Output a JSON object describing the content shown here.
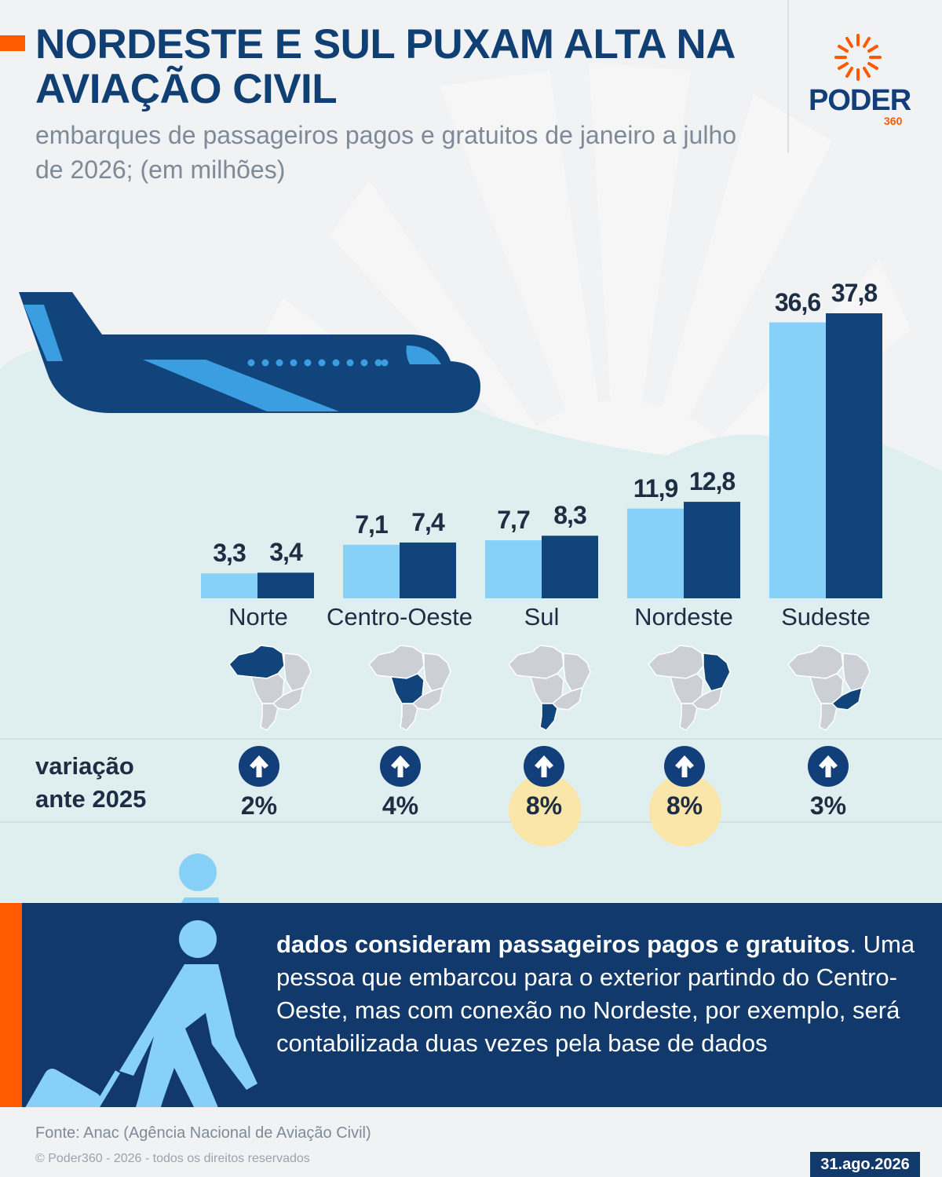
{
  "header": {
    "title": "NORDESTE E SUL PUXAM ALTA NA AVIAÇÃO CIVIL",
    "subtitle": "embarques  de passageiros pagos e gratuitos de janeiro a julho de 2026;  (em milhões)"
  },
  "brand": {
    "name": "PODER",
    "number": "360"
  },
  "colors": {
    "light_bar": "#87d1f8",
    "dark_bar": "#12447c",
    "accent": "#ff5a00",
    "highlight": "#fbe6a9"
  },
  "chart_data": {
    "type": "bar",
    "title": "NORDESTE E SUL PUXAM ALTA NA AVIAÇÃO CIVIL",
    "subtitle": "embarques  de passageiros pagos e gratuitos de janeiro a julho de 2026;  (em milhões)",
    "categories": [
      "Norte",
      "Centro-Oeste",
      "Sul",
      "Nordeste",
      "Sudeste"
    ],
    "series": [
      {
        "values": [
          3.3,
          7.1,
          7.7,
          11.9,
          36.6
        ],
        "labels": [
          "3,3",
          "7,1",
          "7,7",
          "11,9",
          "36,6"
        ]
      },
      {
        "values": [
          3.4,
          7.4,
          8.3,
          12.8,
          37.8
        ],
        "labels": [
          "3,4",
          "7,4",
          "8,3",
          "12,8",
          "37,8"
        ]
      }
    ],
    "xlabel": "",
    "ylabel": "",
    "ylim": [
      0,
      37.8
    ],
    "grid": false,
    "legend": "none"
  },
  "variation": {
    "label_line1": "variação",
    "label_line2": "ante 2025",
    "items": [
      {
        "region": "Norte",
        "value": "2%",
        "highlight": false
      },
      {
        "region": "Centro-Oeste",
        "value": "4%",
        "highlight": false
      },
      {
        "region": "Sul",
        "value": "8%",
        "highlight": true
      },
      {
        "region": "Nordeste",
        "value": "8%",
        "highlight": true
      },
      {
        "region": "Sudeste",
        "value": "3%",
        "highlight": false
      }
    ]
  },
  "note": {
    "bold": "dados consideram passageiros pagos e gratuitos",
    "rest": ". Uma pessoa que embarcou para o exterior partindo do Centro-Oeste, mas com conexão no Nordeste, por exemplo, será contabilizada duas vezes pela base de dados"
  },
  "footer": {
    "source": "Fonte: Anac (Agência Nacional de Aviação Civil)",
    "copyright": "© Poder360 - 2026 - todos os direitos reservados",
    "date": "31.ago.2026"
  },
  "icons": [
    "airplane-icon",
    "traveler-icon",
    "brazil-map-icon",
    "up-arrow-icon",
    "sun-logo-icon"
  ]
}
